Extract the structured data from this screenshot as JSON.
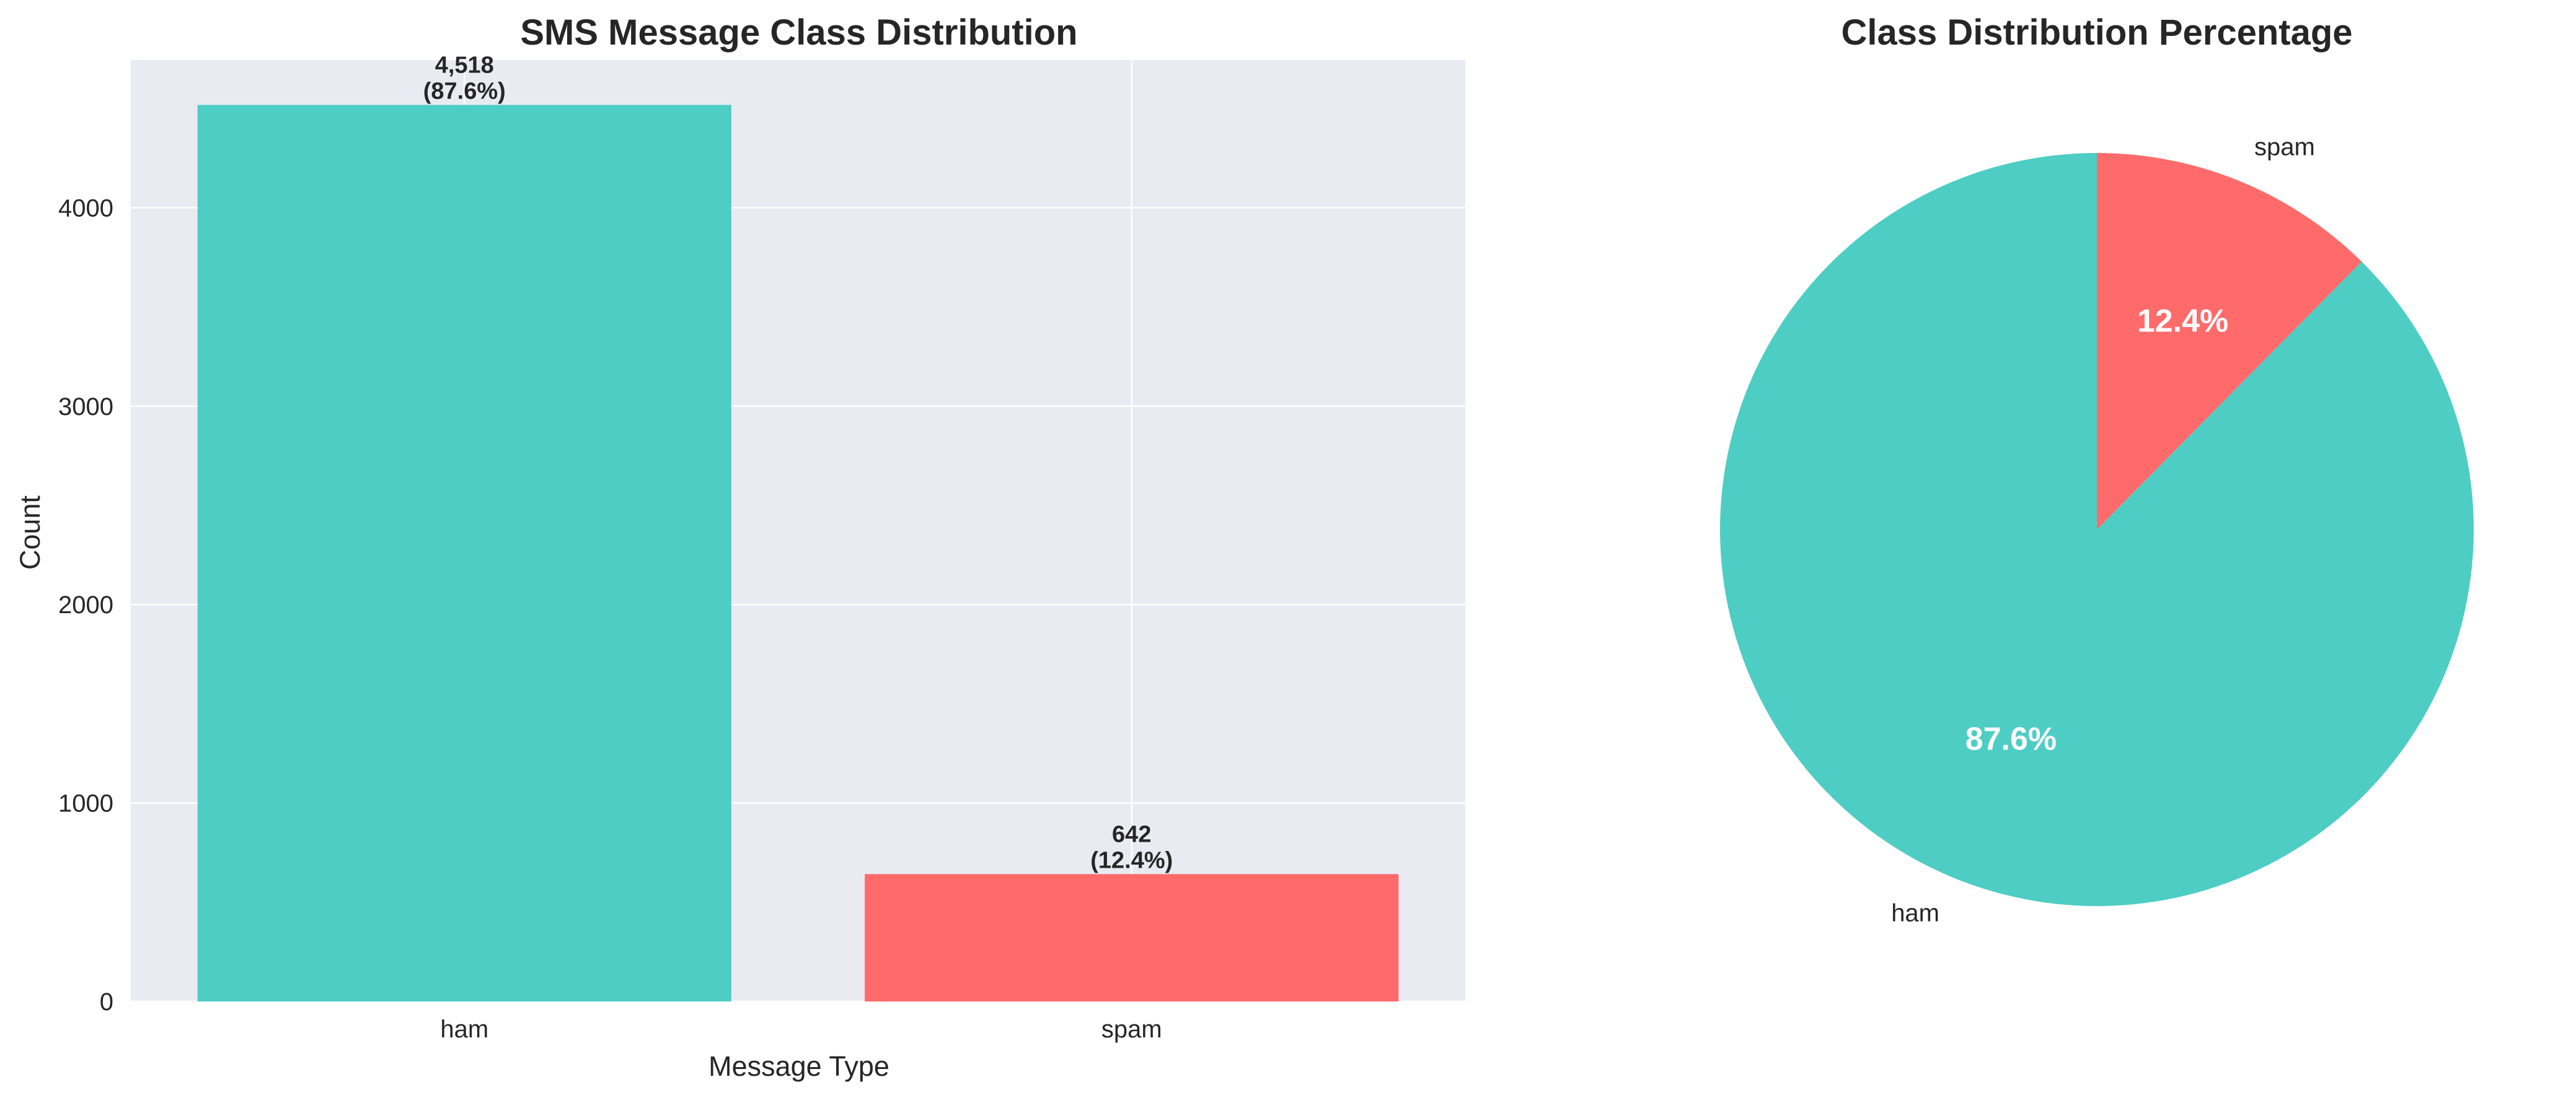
{
  "colors": {
    "ham": "#4ECDC4",
    "spam": "#FF6B6B",
    "axes_bg": "#EAEAF2",
    "grid": "#FFFFFF",
    "text": "#262626"
  },
  "chart_data": [
    {
      "type": "bar",
      "title": "SMS Message Class Distribution",
      "xlabel": "Message Type",
      "ylabel": "Count",
      "categories": [
        "ham",
        "spam"
      ],
      "values": [
        4518,
        642
      ],
      "value_labels": [
        "4,518",
        "642"
      ],
      "percent_labels": [
        "(87.6%)",
        "(12.4%)"
      ],
      "yticks": [
        0,
        1000,
        2000,
        3000,
        4000
      ],
      "ytick_labels": [
        "0",
        "1000",
        "2000",
        "3000",
        "4000"
      ],
      "ylim": [
        0,
        4744
      ],
      "grid": true
    },
    {
      "type": "pie",
      "title": "Class Distribution Percentage",
      "labels": [
        "ham",
        "spam"
      ],
      "values": [
        87.6,
        12.4
      ],
      "pct_labels": [
        "87.6%",
        "12.4%"
      ],
      "start_angle_deg": 90
    }
  ]
}
